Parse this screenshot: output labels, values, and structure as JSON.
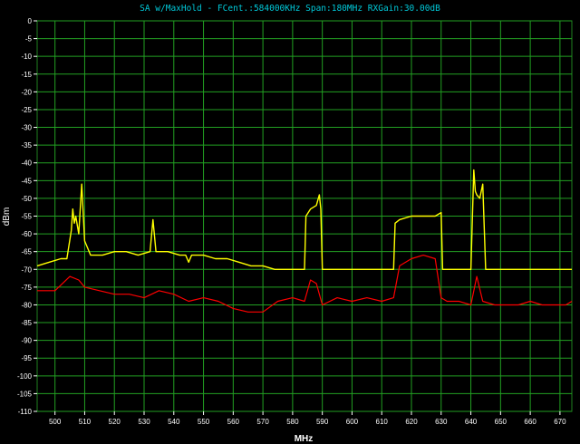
{
  "chart_data": {
    "type": "line",
    "title": "SA w/MaxHold - FCent.:584000KHz Span:180MHz RXGain:30.00dB",
    "xlabel": "MHz",
    "ylabel": "dBm",
    "xlim": [
      494,
      674
    ],
    "ylim": [
      -110,
      0
    ],
    "x_ticks": [
      500,
      510,
      520,
      530,
      540,
      550,
      560,
      570,
      580,
      590,
      600,
      610,
      620,
      630,
      640,
      650,
      660,
      670
    ],
    "y_ticks": [
      0,
      -5,
      -10,
      -15,
      -20,
      -25,
      -30,
      -35,
      -40,
      -45,
      -50,
      -55,
      -60,
      -65,
      -70,
      -75,
      -80,
      -85,
      -90,
      -95,
      -100,
      -105,
      -110
    ],
    "grid": true,
    "colors": {
      "background": "#000000",
      "plot_background": "#000000",
      "grid": "#22a022",
      "title": "#00c8d8",
      "axis_text": "#ffffff",
      "maxhold": "#ffff00",
      "live": "#ff0000"
    },
    "series": [
      {
        "color": "#ffff00",
        "x": [
          494,
          498,
          502,
          504,
          505.5,
          506,
          506.5,
          507,
          508,
          509,
          510,
          512,
          516,
          520,
          524,
          528,
          532,
          533,
          534,
          538,
          542,
          544,
          545,
          546,
          550,
          554,
          558,
          562,
          566,
          570,
          574,
          578,
          582,
          584,
          584.5,
          586,
          588,
          589,
          589.5,
          590,
          594,
          598,
          602,
          606,
          610,
          614,
          614.5,
          616,
          620,
          624,
          628,
          630,
          630.5,
          632,
          636,
          640,
          641,
          641.5,
          642,
          643,
          644,
          645,
          648,
          652,
          656,
          660,
          664,
          668,
          672,
          674
        ],
        "y": [
          -69,
          -68,
          -67,
          -67,
          -59,
          -53,
          -57,
          -55,
          -60,
          -46,
          -62,
          -66,
          -66,
          -65,
          -65,
          -66,
          -65,
          -56,
          -65,
          -65,
          -66,
          -66,
          -68,
          -66,
          -66,
          -67,
          -67,
          -68,
          -69,
          -69,
          -70,
          -70,
          -70,
          -70,
          -55,
          -53,
          -52,
          -49,
          -53,
          -70,
          -70,
          -70,
          -70,
          -70,
          -70,
          -70,
          -57,
          -56,
          -55,
          -55,
          -55,
          -54,
          -70,
          -70,
          -70,
          -70,
          -42,
          -48,
          -49,
          -50,
          -46,
          -70,
          -70,
          -70,
          -70,
          -70,
          -70,
          -70,
          -70,
          -70
        ]
      },
      {
        "color": "#ff0000",
        "x": [
          494,
          500,
          505,
          508,
          510,
          515,
          520,
          525,
          530,
          535,
          540,
          545,
          550,
          555,
          560,
          565,
          570,
          575,
          580,
          584,
          586,
          588,
          590,
          595,
          600,
          605,
          610,
          614,
          616,
          620,
          624,
          628,
          630,
          632,
          636,
          640,
          642,
          644,
          648,
          652,
          656,
          660,
          664,
          668,
          672,
          674
        ],
        "y": [
          -76,
          -76,
          -72,
          -73,
          -75,
          -76,
          -77,
          -77,
          -78,
          -76,
          -77,
          -79,
          -78,
          -79,
          -81,
          -82,
          -82,
          -79,
          -78,
          -79,
          -73,
          -74,
          -80,
          -78,
          -79,
          -78,
          -79,
          -78,
          -69,
          -67,
          -66,
          -67,
          -78,
          -79,
          -79,
          -80,
          -72,
          -79,
          -80,
          -80,
          -80,
          -79,
          -80,
          -80,
          -80,
          -79
        ]
      }
    ]
  }
}
